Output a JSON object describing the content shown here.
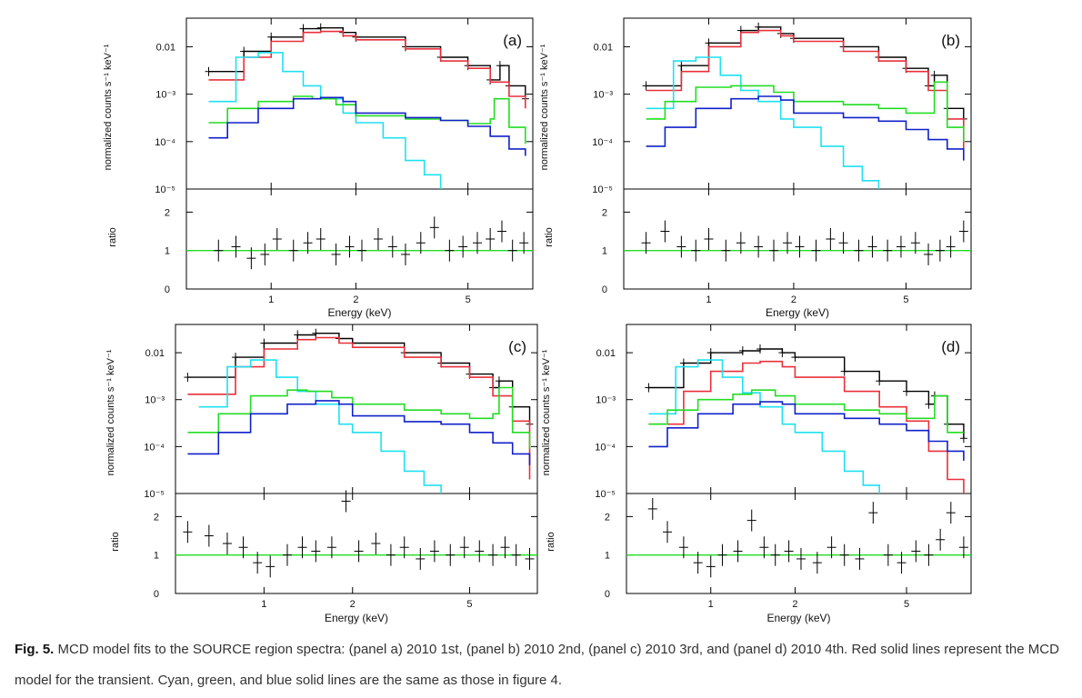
{
  "figure": {
    "caption_label": "Fig. 5.",
    "caption_text": "MCD model fits to the SOURCE region spectra: (panel a) 2010 1st, (panel b) 2010 2nd, (panel c) 2010 3rd, and (panel d) 2010 4th. Red solid lines represent the MCD model for the transient. Cyan, green, and blue solid lines are the same as those in figure 4."
  },
  "colors": {
    "data": "#000000",
    "mcd": "#e8303a",
    "cyan": "#1fe0f0",
    "green": "#22dd22",
    "blue": "#1020c8",
    "ratio_ref": "#22dd22"
  },
  "chart_data": [
    {
      "panel": "(a)",
      "type": "line",
      "upper": {
        "ylabel": "normalized counts s⁻¹ keV⁻¹",
        "yscale": "log",
        "ylim": [
          1e-05,
          0.04
        ],
        "yticks": [
          "0.01",
          "10⁻³",
          "10⁻⁴",
          "10⁻⁵"
        ]
      },
      "lower": {
        "ylabel": "ratio",
        "ylim": [
          0,
          2.6
        ],
        "yticks": [
          "2",
          "1",
          "0"
        ]
      },
      "xlabel": "Energy (keV)",
      "xscale": "log",
      "xlim": [
        0.5,
        8.5
      ],
      "xticks": [
        "1",
        "2",
        "5"
      ],
      "series": [
        {
          "color": "black",
          "x": [
            0.6,
            0.8,
            1.0,
            1.3,
            1.5,
            1.8,
            2.0,
            3.0,
            4.0,
            5.0,
            6.0,
            6.5,
            7.0,
            8.0
          ],
          "y": [
            0.003,
            0.008,
            0.016,
            0.024,
            0.025,
            0.02,
            0.016,
            0.01,
            0.006,
            0.004,
            0.002,
            0.004,
            0.0015,
            0.0008
          ]
        },
        {
          "color": "red",
          "x": [
            0.6,
            0.8,
            1.0,
            1.3,
            1.5,
            1.8,
            2.0,
            3.0,
            4.0,
            5.0,
            6.0,
            7.0,
            8.0
          ],
          "y": [
            0.002,
            0.006,
            0.013,
            0.02,
            0.021,
            0.017,
            0.014,
            0.009,
            0.005,
            0.0035,
            0.0018,
            0.0009,
            0.0005
          ]
        },
        {
          "color": "cyan",
          "x": [
            0.6,
            0.75,
            0.9,
            1.1,
            1.3,
            1.5,
            1.8,
            2.0,
            2.5,
            3.0,
            3.5,
            4.0
          ],
          "y": [
            0.0007,
            0.006,
            0.0075,
            0.003,
            0.0015,
            0.0008,
            0.0004,
            0.00025,
            0.00012,
            4e-05,
            2e-05,
            1e-05
          ]
        },
        {
          "color": "green",
          "x": [
            0.6,
            0.7,
            0.9,
            1.2,
            1.4,
            1.7,
            2.0,
            3.0,
            4.0,
            5.0,
            6.0,
            6.2,
            7.0,
            8.0
          ],
          "y": [
            0.00025,
            0.0005,
            0.0007,
            0.0009,
            0.0008,
            0.0006,
            0.00035,
            0.0003,
            0.00028,
            0.00024,
            0.0003,
            0.0008,
            0.0002,
            9e-05
          ]
        },
        {
          "color": "blue",
          "x": [
            0.6,
            0.7,
            0.9,
            1.2,
            1.5,
            1.8,
            2.0,
            3.0,
            4.0,
            5.0,
            6.0,
            7.0,
            8.0
          ],
          "y": [
            0.00012,
            0.00025,
            0.0005,
            0.0008,
            0.00085,
            0.0007,
            0.0004,
            0.00032,
            0.00028,
            0.00021,
            0.00013,
            7e-05,
            5e-05
          ]
        }
      ],
      "ratio": {
        "x": [
          0.65,
          0.75,
          0.85,
          0.95,
          1.05,
          1.2,
          1.35,
          1.5,
          1.7,
          1.9,
          2.1,
          2.4,
          2.7,
          3.0,
          3.4,
          3.8,
          4.3,
          4.8,
          5.4,
          6.0,
          6.6,
          7.2,
          7.9
        ],
        "y": [
          1.0,
          1.1,
          0.8,
          0.9,
          1.3,
          1.0,
          1.2,
          1.3,
          0.9,
          1.1,
          1.0,
          1.3,
          1.1,
          0.9,
          1.2,
          1.6,
          1.0,
          1.1,
          1.2,
          1.3,
          1.5,
          1.0,
          1.2
        ]
      }
    },
    {
      "panel": "(b)",
      "type": "line",
      "upper": {
        "ylabel": "normalized counts s⁻¹ keV⁻¹",
        "yscale": "log",
        "ylim": [
          1e-05,
          0.04
        ],
        "yticks": [
          "0.01",
          "10⁻³",
          "10⁻⁴",
          "10⁻⁵"
        ]
      },
      "lower": {
        "ylabel": "ratio",
        "ylim": [
          0,
          2.6
        ],
        "yticks": [
          "2",
          "1",
          "0"
        ]
      },
      "xlabel": "Energy (keV)",
      "xscale": "log",
      "xlim": [
        0.5,
        8.5
      ],
      "xticks": [
        "1",
        "2",
        "5"
      ],
      "series": [
        {
          "color": "black",
          "x": [
            0.6,
            0.8,
            1.0,
            1.3,
            1.5,
            1.8,
            2.0,
            3.0,
            4.0,
            5.0,
            6.0,
            6.3,
            7.0,
            8.0
          ],
          "y": [
            0.0015,
            0.004,
            0.012,
            0.022,
            0.026,
            0.019,
            0.015,
            0.01,
            0.006,
            0.0035,
            0.0015,
            0.0025,
            0.0005,
            0.0003
          ]
        },
        {
          "color": "red",
          "x": [
            0.6,
            0.8,
            1.0,
            1.3,
            1.5,
            1.8,
            2.0,
            3.0,
            4.0,
            5.0,
            6.0,
            7.0,
            8.0
          ],
          "y": [
            0.0012,
            0.003,
            0.01,
            0.02,
            0.022,
            0.017,
            0.013,
            0.008,
            0.005,
            0.003,
            0.0012,
            0.0003,
            7e-05
          ]
        },
        {
          "color": "cyan",
          "x": [
            0.6,
            0.75,
            0.9,
            1.1,
            1.3,
            1.5,
            1.8,
            2.0,
            2.5,
            3.0,
            3.5,
            4.0
          ],
          "y": [
            0.0005,
            0.005,
            0.006,
            0.0025,
            0.0012,
            0.0007,
            0.0003,
            0.0002,
            8e-05,
            3e-05,
            1.5e-05,
            1e-05
          ]
        },
        {
          "color": "green",
          "x": [
            0.6,
            0.7,
            0.9,
            1.2,
            1.4,
            1.7,
            2.0,
            3.0,
            4.0,
            5.0,
            6.0,
            6.3,
            7.0,
            8.0
          ],
          "y": [
            0.0003,
            0.0007,
            0.0014,
            0.0015,
            0.0015,
            0.0011,
            0.0007,
            0.0006,
            0.0005,
            0.0004,
            0.0004,
            0.0018,
            0.0002,
            0.0001
          ]
        },
        {
          "color": "blue",
          "x": [
            0.6,
            0.7,
            0.9,
            1.2,
            1.5,
            1.8,
            2.0,
            3.0,
            4.0,
            5.0,
            6.0,
            7.0,
            8.0
          ],
          "y": [
            8e-05,
            0.0002,
            0.0005,
            0.0008,
            0.0009,
            0.00075,
            0.0004,
            0.00032,
            0.00027,
            0.00018,
            0.00011,
            7e-05,
            4e-05
          ]
        }
      ],
      "ratio": {
        "x": [
          0.6,
          0.7,
          0.8,
          0.9,
          1.0,
          1.15,
          1.3,
          1.5,
          1.7,
          1.9,
          2.1,
          2.4,
          2.7,
          3.0,
          3.4,
          3.8,
          4.3,
          4.8,
          5.4,
          6.0,
          6.6,
          7.2,
          8.0
        ],
        "y": [
          1.2,
          1.5,
          1.1,
          1.0,
          1.3,
          1.0,
          1.2,
          1.1,
          1.0,
          1.2,
          1.1,
          1.0,
          1.3,
          1.2,
          1.0,
          1.1,
          1.0,
          1.1,
          1.2,
          0.9,
          1.0,
          1.1,
          1.5
        ]
      }
    },
    {
      "panel": "(c)",
      "type": "line",
      "upper": {
        "ylabel": "normalized counts s⁻¹ keV⁻¹",
        "yscale": "log",
        "ylim": [
          1e-05,
          0.04
        ],
        "yticks": [
          "0.01",
          "10⁻³",
          "10⁻⁴",
          "10⁻⁵"
        ]
      },
      "lower": {
        "ylabel": "ratio",
        "ylim": [
          0,
          2.6
        ],
        "yticks": [
          "2",
          "1",
          "0"
        ]
      },
      "xlabel": "Energy (keV)",
      "xscale": "log",
      "xlim": [
        0.5,
        8.5
      ],
      "xticks": [
        "1",
        "2",
        "5"
      ],
      "series": [
        {
          "color": "black",
          "x": [
            0.55,
            0.8,
            1.0,
            1.3,
            1.5,
            1.8,
            2.0,
            3.0,
            4.0,
            5.0,
            6.0,
            6.3,
            7.0,
            8.0
          ],
          "y": [
            0.003,
            0.008,
            0.016,
            0.024,
            0.026,
            0.02,
            0.016,
            0.01,
            0.006,
            0.0035,
            0.0018,
            0.0025,
            0.0007,
            0.0003
          ]
        },
        {
          "color": "red",
          "x": [
            0.55,
            0.8,
            1.0,
            1.3,
            1.5,
            1.8,
            2.0,
            3.0,
            4.0,
            5.0,
            6.0,
            7.0,
            8.0
          ],
          "y": [
            0.0013,
            0.005,
            0.012,
            0.019,
            0.021,
            0.016,
            0.013,
            0.008,
            0.005,
            0.003,
            0.0012,
            0.00035,
            2e-05
          ]
        },
        {
          "color": "cyan",
          "x": [
            0.6,
            0.75,
            0.9,
            1.1,
            1.3,
            1.5,
            1.8,
            2.0,
            2.5,
            3.0,
            3.5,
            4.0
          ],
          "y": [
            0.0007,
            0.005,
            0.007,
            0.003,
            0.0015,
            0.0008,
            0.0003,
            0.0002,
            8e-05,
            3e-05,
            1.5e-05,
            1e-05
          ]
        },
        {
          "color": "green",
          "x": [
            0.55,
            0.7,
            0.9,
            1.2,
            1.4,
            1.7,
            2.0,
            3.0,
            4.0,
            5.0,
            6.0,
            6.3,
            7.0,
            8.0
          ],
          "y": [
            0.0002,
            0.0005,
            0.0012,
            0.0016,
            0.0015,
            0.0011,
            0.0008,
            0.0006,
            0.0005,
            0.0004,
            0.0005,
            0.0018,
            0.0002,
            9e-05
          ]
        },
        {
          "color": "blue",
          "x": [
            0.55,
            0.7,
            0.9,
            1.2,
            1.5,
            1.8,
            2.0,
            3.0,
            4.0,
            5.0,
            6.0,
            7.0,
            8.0
          ],
          "y": [
            7e-05,
            0.0002,
            0.0005,
            0.0008,
            0.00095,
            0.0008,
            0.00045,
            0.00034,
            0.0003,
            0.0002,
            0.00012,
            7e-05,
            4e-05
          ]
        }
      ],
      "ratio": {
        "x": [
          0.55,
          0.65,
          0.75,
          0.85,
          0.95,
          1.05,
          1.2,
          1.35,
          1.5,
          1.7,
          1.9,
          2.1,
          2.4,
          2.7,
          3.0,
          3.4,
          3.8,
          4.3,
          4.8,
          5.4,
          6.0,
          6.6,
          7.2,
          8.0
        ],
        "y": [
          1.6,
          1.5,
          1.3,
          1.2,
          0.8,
          0.7,
          1.0,
          1.2,
          1.1,
          1.2,
          2.4,
          1.1,
          1.3,
          1.0,
          1.2,
          0.9,
          1.1,
          1.0,
          1.2,
          1.1,
          1.0,
          1.2,
          1.0,
          0.9
        ]
      }
    },
    {
      "panel": "(d)",
      "type": "line",
      "upper": {
        "ylabel": "normalized counts s⁻¹ keV⁻¹",
        "yscale": "log",
        "ylim": [
          1e-05,
          0.04
        ],
        "yticks": [
          "0.01",
          "10⁻³",
          "10⁻⁴",
          "10⁻⁵"
        ]
      },
      "lower": {
        "ylabel": "ratio",
        "ylim": [
          0,
          2.6
        ],
        "yticks": [
          "2",
          "1",
          "0"
        ]
      },
      "xlabel": "Energy (keV)",
      "xscale": "log",
      "xlim": [
        0.5,
        8.5
      ],
      "xticks": [
        "1",
        "2",
        "5"
      ],
      "series": [
        {
          "color": "black",
          "x": [
            0.6,
            0.8,
            1.0,
            1.3,
            1.5,
            1.8,
            2.0,
            3.0,
            4.0,
            5.0,
            6.0,
            6.3,
            7.0,
            8.0
          ],
          "y": [
            0.0018,
            0.006,
            0.01,
            0.011,
            0.012,
            0.01,
            0.008,
            0.004,
            0.0025,
            0.0015,
            0.0008,
            0.0012,
            0.0003,
            0.00015
          ]
        },
        {
          "color": "red",
          "x": [
            0.6,
            0.8,
            1.0,
            1.3,
            1.5,
            1.8,
            2.0,
            3.0,
            4.0,
            5.0,
            6.0,
            7.0,
            8.0
          ],
          "y": [
            0.0003,
            0.0015,
            0.004,
            0.006,
            0.0065,
            0.005,
            0.003,
            0.0015,
            0.0007,
            0.00035,
            8e-05,
            2e-05,
            1e-05
          ]
        },
        {
          "color": "cyan",
          "x": [
            0.6,
            0.75,
            0.9,
            1.1,
            1.3,
            1.5,
            1.8,
            2.0,
            2.5,
            3.0,
            3.5,
            4.0
          ],
          "y": [
            0.0005,
            0.005,
            0.007,
            0.003,
            0.0014,
            0.0007,
            0.0003,
            0.0002,
            8e-05,
            3e-05,
            1.5e-05,
            1e-05
          ]
        },
        {
          "color": "green",
          "x": [
            0.6,
            0.7,
            0.9,
            1.2,
            1.4,
            1.7,
            2.0,
            3.0,
            4.0,
            5.0,
            6.0,
            6.3,
            7.0,
            8.0
          ],
          "y": [
            0.0003,
            0.0006,
            0.001,
            0.0013,
            0.0016,
            0.0012,
            0.0008,
            0.0006,
            0.0005,
            0.0004,
            0.0004,
            0.0012,
            0.0002,
            0.0002
          ]
        },
        {
          "color": "blue",
          "x": [
            0.6,
            0.7,
            0.9,
            1.2,
            1.5,
            1.8,
            2.0,
            3.0,
            4.0,
            5.0,
            6.0,
            7.0,
            8.0
          ],
          "y": [
            0.0001,
            0.00025,
            0.0005,
            0.0008,
            0.0009,
            0.0008,
            0.0005,
            0.0004,
            0.0003,
            0.00022,
            0.00013,
            8e-05,
            5e-05
          ]
        }
      ],
      "ratio": {
        "x": [
          0.62,
          0.7,
          0.8,
          0.9,
          1.0,
          1.1,
          1.25,
          1.4,
          1.55,
          1.7,
          1.9,
          2.1,
          2.4,
          2.7,
          3.0,
          3.4,
          3.8,
          4.3,
          4.8,
          5.4,
          6.0,
          6.6,
          7.2,
          8.0
        ],
        "y": [
          2.2,
          1.6,
          1.2,
          0.8,
          0.7,
          1.0,
          1.1,
          1.9,
          1.2,
          1.0,
          1.1,
          0.9,
          0.8,
          1.2,
          1.0,
          0.9,
          2.1,
          1.0,
          0.8,
          1.1,
          1.0,
          1.4,
          2.1,
          1.2
        ]
      }
    }
  ]
}
